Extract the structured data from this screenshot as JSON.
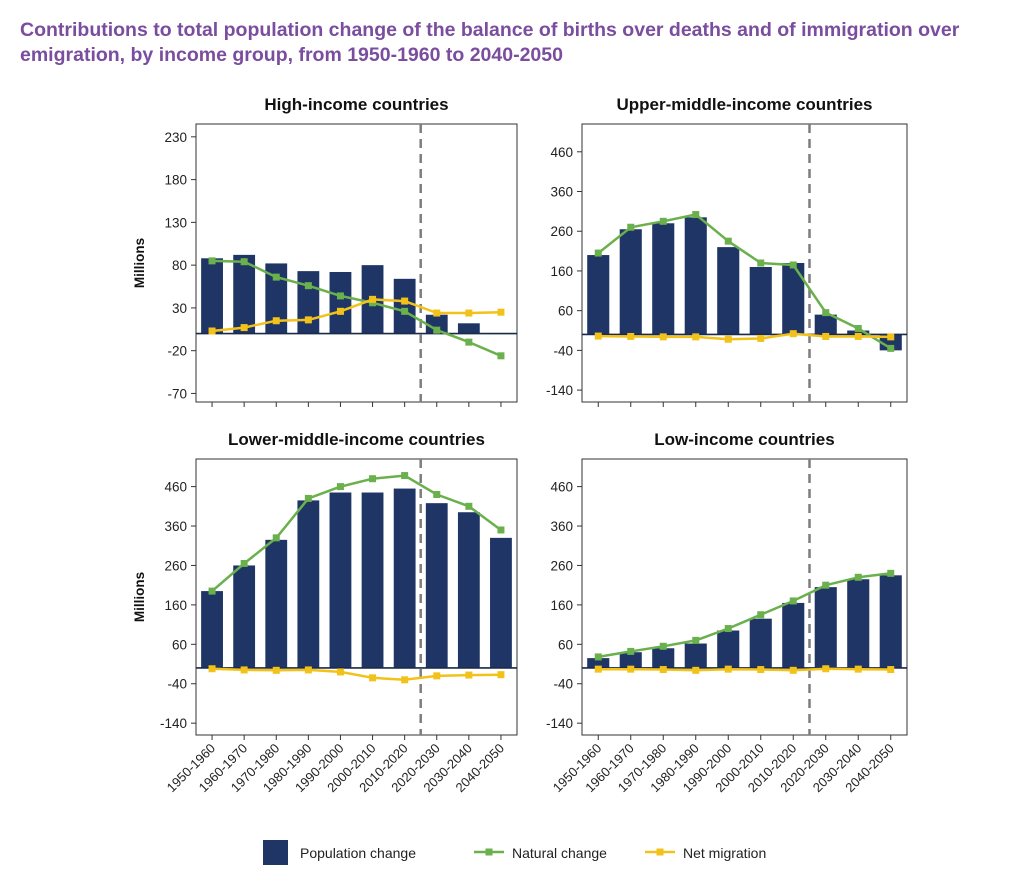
{
  "title": "Contributions to total population change of the balance of births over deaths and of immigration over emigration, by income group, from 1950-1960 to 2040-2050",
  "colors": {
    "population_change": "#1f3566",
    "natural_change": "#6ab04c",
    "net_migration": "#f2c21b",
    "title": "#7a4d9e",
    "dashed_line": "#7d7d7d"
  },
  "chart_data": [
    {
      "type": "bar",
      "title": "High-income countries",
      "ylabel": "Millions",
      "categories": [
        "1950-1960",
        "1960-1970",
        "1970-1980",
        "1980-1990",
        "1990-2000",
        "2000-2010",
        "2010-2020",
        "2020-2030",
        "2030-2040",
        "2040-2050"
      ],
      "yticks": [
        230,
        180,
        130,
        80,
        30,
        -20,
        -70
      ],
      "ylim": [
        -80,
        245
      ],
      "projection_divider_after": "2010-2020",
      "series": [
        {
          "name": "Population change",
          "type": "bar",
          "values": [
            88,
            92,
            82,
            73,
            72,
            80,
            64,
            22,
            12,
            0
          ]
        },
        {
          "name": "Natural change",
          "type": "line",
          "values": [
            85,
            84,
            66,
            56,
            44,
            36,
            26,
            4,
            -10,
            -26
          ]
        },
        {
          "name": "Net migration",
          "type": "line",
          "values": [
            3,
            7,
            15,
            16,
            26,
            40,
            38,
            24,
            24,
            25
          ]
        }
      ]
    },
    {
      "type": "bar",
      "title": "Upper-middle-income countries",
      "ylabel": "",
      "categories": [
        "1950-1960",
        "1960-1970",
        "1970-1980",
        "1980-1990",
        "1990-2000",
        "2000-2010",
        "2010-2020",
        "2020-2030",
        "2030-2040",
        "2040-2050"
      ],
      "yticks": [
        460,
        360,
        260,
        160,
        60,
        -40,
        -140
      ],
      "ylim": [
        -170,
        530
      ],
      "projection_divider_after": "2010-2020",
      "series": [
        {
          "name": "Population change",
          "type": "bar",
          "values": [
            200,
            265,
            280,
            295,
            220,
            170,
            180,
            50,
            10,
            -40
          ]
        },
        {
          "name": "Natural change",
          "type": "line",
          "values": [
            205,
            270,
            285,
            302,
            235,
            180,
            175,
            55,
            15,
            -35
          ]
        },
        {
          "name": "Net migration",
          "type": "line",
          "values": [
            -4,
            -5,
            -6,
            -6,
            -12,
            -10,
            2,
            -5,
            -5,
            -6
          ]
        }
      ]
    },
    {
      "type": "bar",
      "title": "Lower-middle-income countries",
      "ylabel": "Millions",
      "categories": [
        "1950-1960",
        "1960-1970",
        "1970-1980",
        "1980-1990",
        "1990-2000",
        "2000-2010",
        "2010-2020",
        "2020-2030",
        "2030-2040",
        "2040-2050"
      ],
      "yticks": [
        460,
        360,
        260,
        160,
        60,
        -40,
        -140
      ],
      "ylim": [
        -170,
        530
      ],
      "projection_divider_after": "2010-2020",
      "series": [
        {
          "name": "Population change",
          "type": "bar",
          "values": [
            195,
            260,
            325,
            425,
            445,
            445,
            455,
            418,
            395,
            330
          ]
        },
        {
          "name": "Natural change",
          "type": "line",
          "values": [
            195,
            265,
            330,
            430,
            460,
            480,
            488,
            440,
            410,
            350
          ]
        },
        {
          "name": "Net migration",
          "type": "line",
          "values": [
            -2,
            -5,
            -6,
            -5,
            -10,
            -25,
            -30,
            -20,
            -18,
            -17
          ]
        }
      ]
    },
    {
      "type": "bar",
      "title": "Low-income countries",
      "ylabel": "",
      "categories": [
        "1950-1960",
        "1960-1970",
        "1970-1980",
        "1980-1990",
        "1990-2000",
        "2000-2010",
        "2010-2020",
        "2020-2030",
        "2030-2040",
        "2040-2050"
      ],
      "yticks": [
        460,
        360,
        260,
        160,
        60,
        -40,
        -140
      ],
      "ylim": [
        -170,
        530
      ],
      "projection_divider_after": "2010-2020",
      "series": [
        {
          "name": "Population change",
          "type": "bar",
          "values": [
            25,
            40,
            50,
            62,
            95,
            125,
            165,
            205,
            225,
            235
          ]
        },
        {
          "name": "Natural change",
          "type": "line",
          "values": [
            28,
            42,
            55,
            70,
            100,
            135,
            170,
            210,
            230,
            240
          ]
        },
        {
          "name": "Net migration",
          "type": "line",
          "values": [
            -3,
            -3,
            -4,
            -6,
            -3,
            -4,
            -6,
            -2,
            -3,
            -4
          ]
        }
      ]
    }
  ],
  "legend": {
    "items": [
      "Population change",
      "Natural change",
      "Net migration"
    ]
  }
}
